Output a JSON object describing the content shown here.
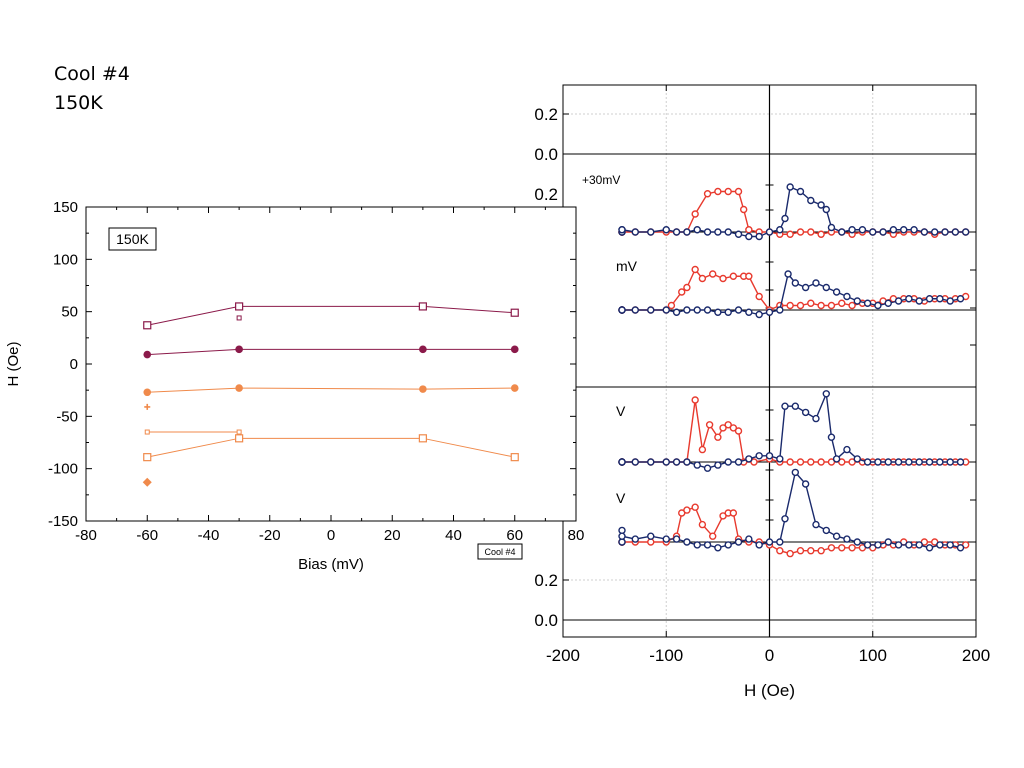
{
  "slide": {
    "title_line1": "Cool #4",
    "title_line2": "150K"
  },
  "colors": {
    "dark_magenta": "#8b1a4a",
    "orange": "#f08a4b",
    "red": "#e83a2e",
    "navy": "#1a2a6c",
    "grid": "#cfcfcf"
  },
  "chart_data": [
    {
      "type": "scatter",
      "xlabel": "H (Oe)",
      "xlim": [
        -200,
        200
      ],
      "x_ticks": [
        "-200",
        "-100",
        "0",
        "100",
        "200"
      ],
      "y_ticks_top": [
        "0.2",
        "0.0"
      ],
      "y_ticks_bottom": [
        "0.2",
        "0.0"
      ],
      "annotations": [
        "+30mV",
        "mV",
        "V",
        "V"
      ],
      "grid": true,
      "panels": [
        {
          "label": "+30mV",
          "series": [
            {
              "color": "red",
              "x": [
                -190,
                -175,
                -160,
                -145,
                -130,
                -115,
                -100,
                -90,
                -80,
                -72,
                -60,
                -50,
                -40,
                -30,
                -25,
                -20,
                -10,
                0,
                10,
                20,
                30,
                40,
                50,
                60,
                70,
                80,
                90,
                100,
                110,
                120,
                130,
                140,
                150,
                160,
                170,
                180,
                190
              ],
              "y": [
                0,
                0,
                0,
                0,
                0,
                0,
                0,
                0,
                0,
                0.4,
                0.85,
                0.9,
                0.9,
                0.9,
                0.5,
                0.05,
                0,
                0,
                -0.05,
                -0.05,
                0,
                0,
                -0.05,
                0,
                0,
                -0.05,
                0,
                0,
                0,
                -0.05,
                0,
                0,
                0,
                -0.05,
                0,
                0,
                0
              ]
            },
            {
              "color": "navy",
              "x": [
                -190,
                -175,
                -160,
                -145,
                -130,
                -115,
                -100,
                -90,
                -80,
                -70,
                -60,
                -50,
                -40,
                -30,
                -20,
                -10,
                0,
                10,
                15,
                20,
                30,
                40,
                50,
                55,
                60,
                70,
                80,
                90,
                100,
                110,
                120,
                130,
                140,
                150,
                160,
                170,
                180,
                190
              ],
              "y": [
                0,
                0.05,
                0,
                0.05,
                0,
                0,
                0.05,
                0,
                0,
                0.05,
                0,
                0,
                0,
                -0.05,
                -0.1,
                -0.1,
                0,
                0.05,
                0.3,
                1.0,
                0.9,
                0.7,
                0.6,
                0.5,
                0.1,
                0,
                0.05,
                0.05,
                0,
                0,
                0.05,
                0.05,
                0.05,
                0,
                0,
                0,
                0,
                0
              ]
            }
          ]
        },
        {
          "label": "mV",
          "series": [
            {
              "color": "red",
              "x": [
                -190,
                -175,
                -160,
                -145,
                -130,
                -115,
                -100,
                -95,
                -85,
                -80,
                -72,
                -65,
                -55,
                -45,
                -35,
                -25,
                -20,
                -10,
                0,
                10,
                20,
                30,
                40,
                50,
                60,
                70,
                80,
                90,
                100,
                110,
                120,
                130,
                140,
                150,
                160,
                170,
                180,
                190
              ],
              "y": [
                0,
                0,
                0,
                0,
                0,
                0,
                0,
                0.1,
                0.4,
                0.5,
                0.9,
                0.7,
                0.8,
                0.7,
                0.75,
                0.75,
                0.75,
                0.3,
                0,
                0.1,
                0.1,
                0.1,
                0.15,
                0.1,
                0.1,
                0.15,
                0.1,
                0.15,
                0.15,
                0.2,
                0.25,
                0.25,
                0.25,
                0.2,
                0.25,
                0.25,
                0.25,
                0.3
              ]
            },
            {
              "color": "navy",
              "x": [
                -190,
                -175,
                -160,
                -145,
                -130,
                -115,
                -100,
                -90,
                -80,
                -70,
                -60,
                -50,
                -40,
                -30,
                -20,
                -10,
                0,
                10,
                18,
                25,
                35,
                45,
                55,
                65,
                75,
                85,
                95,
                105,
                115,
                125,
                135,
                145,
                155,
                165,
                175,
                185
              ],
              "y": [
                0,
                0,
                0,
                0,
                0,
                0,
                0,
                -0.05,
                0,
                0,
                0,
                -0.05,
                -0.05,
                0,
                -0.05,
                -0.1,
                -0.05,
                0,
                0.8,
                0.6,
                0.5,
                0.6,
                0.5,
                0.4,
                0.3,
                0.2,
                0.15,
                0.1,
                0.15,
                0.2,
                0.25,
                0.2,
                0.25,
                0.25,
                0.2,
                0.25
              ]
            }
          ]
        },
        {
          "label": "V",
          "series": [
            {
              "color": "red",
              "x": [
                -190,
                -175,
                -160,
                -145,
                -130,
                -115,
                -100,
                -90,
                -80,
                -72,
                -65,
                -58,
                -50,
                -45,
                -40,
                -35,
                -30,
                -25,
                -15,
                0,
                10,
                20,
                30,
                40,
                50,
                60,
                70,
                80,
                90,
                100,
                110,
                120,
                130,
                140,
                150,
                160,
                170,
                180,
                190
              ],
              "y": [
                0,
                0,
                0,
                0,
                0,
                0,
                0,
                0,
                0,
                1.0,
                0.2,
                0.6,
                0.4,
                0.55,
                0.6,
                0.55,
                0.5,
                0,
                0,
                0.05,
                0,
                0,
                0,
                0,
                0,
                0,
                0,
                0,
                0,
                0,
                0,
                0,
                0,
                0,
                0,
                0,
                0,
                0,
                0
              ]
            },
            {
              "color": "navy",
              "x": [
                -190,
                -175,
                -160,
                -145,
                -130,
                -115,
                -100,
                -90,
                -80,
                -70,
                -60,
                -50,
                -40,
                -30,
                -20,
                -10,
                0,
                10,
                15,
                25,
                35,
                45,
                55,
                60,
                65,
                75,
                85,
                95,
                105,
                115,
                125,
                135,
                145,
                155,
                165,
                175,
                185
              ],
              "y": [
                0,
                0,
                0,
                0,
                0,
                0,
                0,
                0,
                0,
                -0.05,
                -0.1,
                -0.05,
                0,
                0,
                0.05,
                0.1,
                0.1,
                0.05,
                0.9,
                0.9,
                0.8,
                0.7,
                1.1,
                0.4,
                0.05,
                0.2,
                0.05,
                0,
                0,
                0,
                0,
                0,
                0,
                0,
                0,
                0,
                0
              ]
            }
          ]
        },
        {
          "label": "V",
          "series": [
            {
              "color": "red",
              "x": [
                -190,
                -175,
                -160,
                -145,
                -130,
                -115,
                -100,
                -90,
                -85,
                -80,
                -72,
                -65,
                -55,
                -45,
                -40,
                -35,
                -30,
                -20,
                -10,
                0,
                10,
                20,
                30,
                40,
                50,
                60,
                70,
                80,
                90,
                100,
                110,
                120,
                130,
                140,
                150,
                160,
                170,
                180,
                190
              ],
              "y": [
                0,
                0,
                0,
                0,
                0,
                0,
                0,
                0.1,
                0.5,
                0.55,
                0.6,
                0.3,
                0.1,
                0.45,
                0.5,
                0.5,
                0.05,
                0,
                0,
                -0.05,
                -0.15,
                -0.2,
                -0.15,
                -0.15,
                -0.15,
                -0.1,
                -0.1,
                -0.1,
                -0.1,
                -0.1,
                -0.05,
                -0.05,
                0,
                -0.05,
                0,
                0,
                -0.05,
                -0.05,
                -0.05
              ]
            },
            {
              "color": "navy",
              "x": [
                -190,
                -175,
                -160,
                -145,
                -130,
                -115,
                -100,
                -90,
                -80,
                -70,
                -60,
                -50,
                -40,
                -30,
                -20,
                -10,
                0,
                10,
                15,
                25,
                35,
                45,
                55,
                65,
                75,
                85,
                95,
                105,
                115,
                125,
                135,
                145,
                155,
                165,
                175,
                185
              ],
              "y": [
                0,
                0,
                0.2,
                0.1,
                0.05,
                0.1,
                0.05,
                0.05,
                0,
                -0.05,
                -0.05,
                -0.1,
                -0.05,
                0,
                0.05,
                -0.05,
                0,
                0,
                0.4,
                1.2,
                1.0,
                0.3,
                0.2,
                0.1,
                0.05,
                0,
                -0.05,
                -0.05,
                0,
                -0.05,
                -0.05,
                -0.05,
                -0.1,
                -0.05,
                -0.05,
                -0.1
              ]
            }
          ]
        }
      ]
    },
    {
      "type": "line",
      "xlabel": "Bias (mV)",
      "ylabel": "H (Oe)",
      "xlim": [
        -80,
        80
      ],
      "ylim": [
        -150,
        150
      ],
      "x_ticks": [
        "-80",
        "-60",
        "-40",
        "-20",
        "0",
        "20",
        "40",
        "60",
        "80"
      ],
      "y_ticks": [
        "150",
        "100",
        "50",
        "0",
        "-50",
        "-100",
        "-150"
      ],
      "inset_label": "150K",
      "tag": "Cool #4",
      "grid": false,
      "series": [
        {
          "color": "dark_magenta",
          "marker": "open-square",
          "x": [
            -60,
            -30,
            30,
            60
          ],
          "y": [
            37,
            55,
            55,
            49
          ]
        },
        {
          "color": "dark_magenta",
          "marker": "filled-circle",
          "x": [
            -60,
            -30,
            30,
            60
          ],
          "y": [
            9,
            14,
            14,
            14
          ]
        },
        {
          "color": "orange",
          "marker": "filled-circle",
          "x": [
            -60,
            -30,
            30,
            60
          ],
          "y": [
            -27,
            -23,
            -24,
            -23
          ]
        },
        {
          "color": "orange",
          "marker": "small-open-square",
          "x": [
            -60,
            -30
          ],
          "y": [
            -65,
            -65
          ]
        },
        {
          "color": "orange",
          "marker": "open-square",
          "x": [
            -60,
            -30,
            30,
            60
          ],
          "y": [
            -89,
            -71,
            -71,
            -89
          ]
        }
      ],
      "points": [
        {
          "color": "dark_magenta",
          "marker": "tiny-open-square",
          "x": -30,
          "y": 44
        },
        {
          "color": "orange",
          "marker": "plus",
          "x": -60,
          "y": -41
        },
        {
          "color": "orange",
          "marker": "filled-diamond",
          "x": -60,
          "y": -113
        }
      ]
    }
  ]
}
